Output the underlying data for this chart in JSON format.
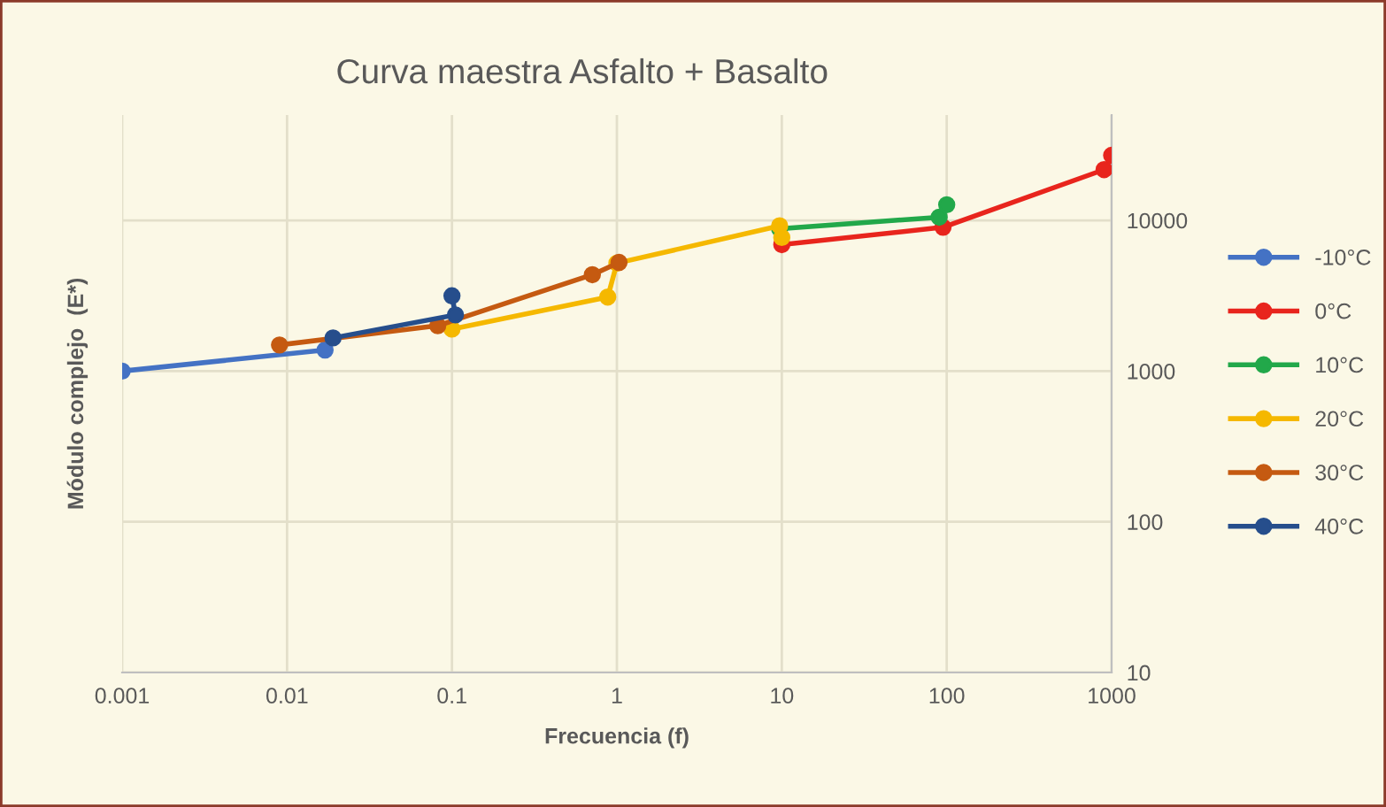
{
  "chart_data": {
    "type": "line",
    "title": "Curva maestra Asfalto + Basalto",
    "xlabel": "Frecuencia (f)",
    "ylabel": "Módulo complejo  (E*)",
    "series": [
      {
        "name": "-10°C",
        "color": "#4472c4",
        "x": [
          0.001,
          0.017
        ],
        "values": [
          1000,
          1380
        ]
      },
      {
        "name": "0°C",
        "color": "#e8251d",
        "x": [
          10,
          95,
          900,
          1000
        ],
        "values": [
          6900,
          9000,
          21700,
          27000
        ]
      },
      {
        "name": "10°C",
        "color": "#22a84a",
        "x": [
          9.7,
          90,
          100
        ],
        "values": [
          8800,
          10500,
          12700
        ]
      },
      {
        "name": "20°C",
        "color": "#f5b800",
        "x": [
          0.1,
          0.88,
          1,
          9.7,
          10
        ],
        "values": [
          1900,
          3100,
          5200,
          9200,
          7700
        ]
      },
      {
        "name": "30°C",
        "color": "#c55a11",
        "x": [
          0.009,
          0.082,
          0.71,
          1.03
        ],
        "values": [
          1490,
          2000,
          4360,
          5260
        ]
      },
      {
        "name": "40°C",
        "color": "#264e8c",
        "x": [
          0.019,
          0.105,
          0.1
        ],
        "values": [
          1660,
          2360,
          3160
        ]
      }
    ],
    "xlim": [
      0.001,
      1000
    ],
    "ylim": [
      10,
      50000
    ],
    "xticks": [
      0.001,
      0.01,
      0.1,
      1,
      10,
      100,
      1000
    ],
    "yticks": [
      10,
      100,
      1000,
      10000
    ],
    "log": "xy",
    "grid": true,
    "legend": "right",
    "marker": "circle",
    "line_style": "solid"
  }
}
